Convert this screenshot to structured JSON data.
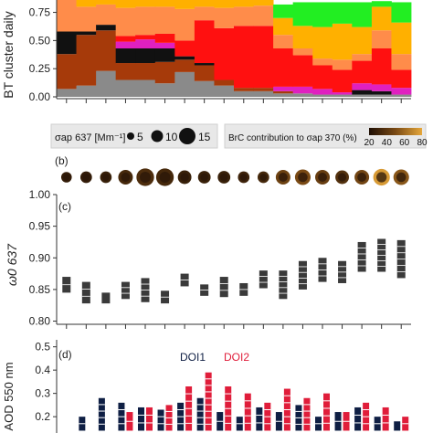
{
  "chart_data": [
    {
      "panel": "a",
      "type": "stacked-bar",
      "ylabel": "BT cluster daily",
      "yticks": [
        "0.00",
        "0.25",
        "0.50",
        "0.75"
      ],
      "ylim": [
        0,
        0.86
      ],
      "n_days": 18,
      "colors": [
        "#8a8a8a",
        "#a63a0a",
        "#111111",
        "#e020c0",
        "#ff1010",
        "#ff8c4a",
        "#ffb000",
        "#22ee22"
      ],
      "fractions": [
        [
          0.07,
          0.31,
          0.2,
          0.0,
          0.0,
          0.28,
          0.08,
          0.0
        ],
        [
          0.1,
          0.45,
          0.03,
          0.0,
          0.0,
          0.22,
          0.06,
          0.0
        ],
        [
          0.23,
          0.36,
          0.05,
          0.0,
          0.0,
          0.18,
          0.04,
          0.0
        ],
        [
          0.15,
          0.15,
          0.13,
          0.06,
          0.05,
          0.25,
          0.07,
          0.0
        ],
        [
          0.15,
          0.15,
          0.13,
          0.08,
          0.04,
          0.25,
          0.06,
          0.0
        ],
        [
          0.12,
          0.19,
          0.12,
          0.05,
          0.08,
          0.24,
          0.06,
          0.0
        ],
        [
          0.22,
          0.11,
          0.03,
          0.0,
          0.14,
          0.28,
          0.08,
          0.0
        ],
        [
          0.14,
          0.14,
          0.02,
          0.0,
          0.38,
          0.12,
          0.06,
          0.0
        ],
        [
          0.1,
          0.05,
          0.0,
          0.0,
          0.46,
          0.18,
          0.07,
          0.0
        ],
        [
          0.05,
          0.03,
          0.0,
          0.0,
          0.55,
          0.17,
          0.06,
          0.0
        ],
        [
          0.05,
          0.03,
          0.0,
          0.0,
          0.55,
          0.18,
          0.05,
          0.0
        ],
        [
          0.03,
          0.02,
          0.0,
          0.04,
          0.34,
          0.12,
          0.15,
          0.12
        ],
        [
          0.03,
          0.0,
          0.0,
          0.06,
          0.28,
          0.06,
          0.2,
          0.21
        ],
        [
          0.02,
          0.0,
          0.0,
          0.05,
          0.21,
          0.06,
          0.28,
          0.22
        ],
        [
          0.02,
          0.0,
          0.0,
          0.02,
          0.2,
          0.09,
          0.32,
          0.19
        ],
        [
          0.02,
          0.0,
          0.04,
          0.06,
          0.2,
          0.06,
          0.24,
          0.22
        ],
        [
          0.02,
          0.0,
          0.03,
          0.06,
          0.32,
          0.16,
          0.21,
          0.05
        ],
        [
          0.02,
          0.0,
          0.0,
          0.06,
          0.16,
          0.14,
          0.28,
          0.18
        ]
      ]
    },
    {
      "panel": "legend",
      "size_label": "σap 637 [Mm⁻¹]",
      "size_values": [
        "5",
        "10",
        "15"
      ],
      "brc_label": "BrC contribution to σap 370 (%)",
      "brc_ticks": [
        "20",
        "40",
        "60",
        "80"
      ],
      "brc_gradient": [
        "#1e0f05",
        "#7a4a14",
        "#e6a73a"
      ]
    },
    {
      "panel": "b",
      "type": "bubble",
      "label": "(b)",
      "sigma_ap_637": [
        6,
        7,
        7,
        10,
        13,
        13,
        9,
        8,
        8,
        7,
        7,
        10,
        11,
        10,
        9,
        10,
        12,
        11
      ],
      "brc_percent": [
        18,
        18,
        20,
        25,
        28,
        25,
        20,
        20,
        20,
        22,
        25,
        40,
        45,
        38,
        30,
        42,
        75,
        50
      ]
    },
    {
      "panel": "c",
      "type": "range",
      "label": "(c)",
      "ylabel": "ω0 637",
      "yticks": [
        "0.80",
        "0.85",
        "0.90",
        "0.95",
        "1.00"
      ],
      "ylim": [
        0.795,
        1.0
      ],
      "ranges": [
        [
          0.845,
          0.87
        ],
        [
          0.828,
          0.862
        ],
        [
          0.828,
          0.845
        ],
        [
          0.835,
          0.862
        ],
        [
          0.83,
          0.868
        ],
        [
          0.828,
          0.848
        ],
        [
          0.855,
          0.875
        ],
        [
          0.84,
          0.858
        ],
        [
          0.838,
          0.87
        ],
        [
          0.84,
          0.86
        ],
        [
          0.852,
          0.88
        ],
        [
          0.835,
          0.88
        ],
        [
          0.85,
          0.895
        ],
        [
          0.862,
          0.9
        ],
        [
          0.86,
          0.895
        ],
        [
          0.878,
          0.925
        ],
        [
          0.878,
          0.93
        ],
        [
          0.868,
          0.928
        ]
      ]
    },
    {
      "panel": "d",
      "type": "grouped-range",
      "label": "(d)",
      "ylabel": "AOD 550 nm",
      "yticks": [
        "0.2",
        "0.3",
        "0.4",
        "0.5"
      ],
      "ylim": [
        0.13,
        0.53
      ],
      "legend": [
        {
          "name": "DOI1",
          "color": "#0f1f44"
        },
        {
          "name": "DOI2",
          "color": "#e01d3a"
        }
      ],
      "series": [
        {
          "name": "DOI1",
          "values": [
            null,
            [
              0.14,
              0.2
            ],
            [
              0.14,
              0.28
            ],
            [
              0.14,
              0.26
            ],
            [
              0.14,
              0.24
            ],
            [
              0.14,
              0.23
            ],
            [
              0.14,
              0.26
            ],
            [
              0.14,
              0.28
            ],
            [
              0.14,
              0.22
            ],
            [
              0.14,
              0.2
            ],
            [
              0.14,
              0.24
            ],
            [
              0.14,
              0.22
            ],
            [
              0.14,
              0.25
            ],
            [
              0.14,
              0.2
            ],
            [
              0.14,
              0.22
            ],
            [
              0.14,
              0.24
            ],
            [
              0.14,
              0.2
            ],
            [
              0.14,
              0.18
            ]
          ]
        },
        {
          "name": "DOI2",
          "values": [
            null,
            null,
            null,
            [
              0.14,
              0.22
            ],
            [
              0.14,
              0.24
            ],
            [
              0.14,
              0.25
            ],
            [
              0.14,
              0.33
            ],
            [
              0.14,
              0.39
            ],
            [
              0.14,
              0.33
            ],
            [
              0.14,
              0.3
            ],
            [
              0.14,
              0.26
            ],
            [
              0.14,
              0.32
            ],
            [
              0.14,
              0.28
            ],
            [
              0.14,
              0.3
            ],
            [
              0.14,
              0.22
            ],
            [
              0.14,
              0.26
            ],
            [
              0.14,
              0.24
            ],
            [
              0.14,
              0.2
            ]
          ]
        }
      ]
    }
  ]
}
